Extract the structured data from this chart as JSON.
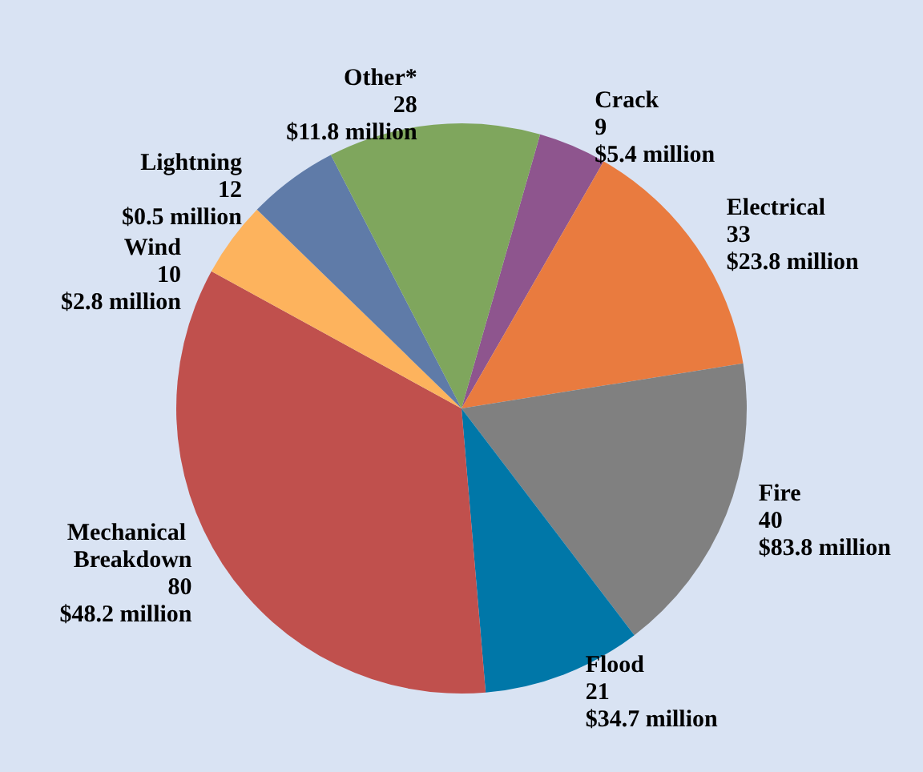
{
  "chart_data": {
    "type": "pie",
    "categories": [
      "Crack",
      "Electrical",
      "Fire",
      "Flood",
      "Mechanical Breakdown",
      "Wind",
      "Lightning",
      "Other*"
    ],
    "values": [
      9,
      33,
      40,
      21,
      80,
      10,
      12,
      28
    ],
    "value_labels": [
      "9\n$5.4 million",
      "33\n$23.8 million",
      "40\n$83.8 million",
      "21\n$34.7 million",
      "80\n$48.2 million",
      "10\n$2.8 million",
      "12\n$0.5 million",
      "28\n$11.8 million"
    ],
    "colors": [
      "#8e558e",
      "#e97b3f",
      "#808080",
      "#0077a8",
      "#c0504d",
      "#fdb35d",
      "#5f7ba8",
      "#7fa65d"
    ],
    "legend": false
  }
}
